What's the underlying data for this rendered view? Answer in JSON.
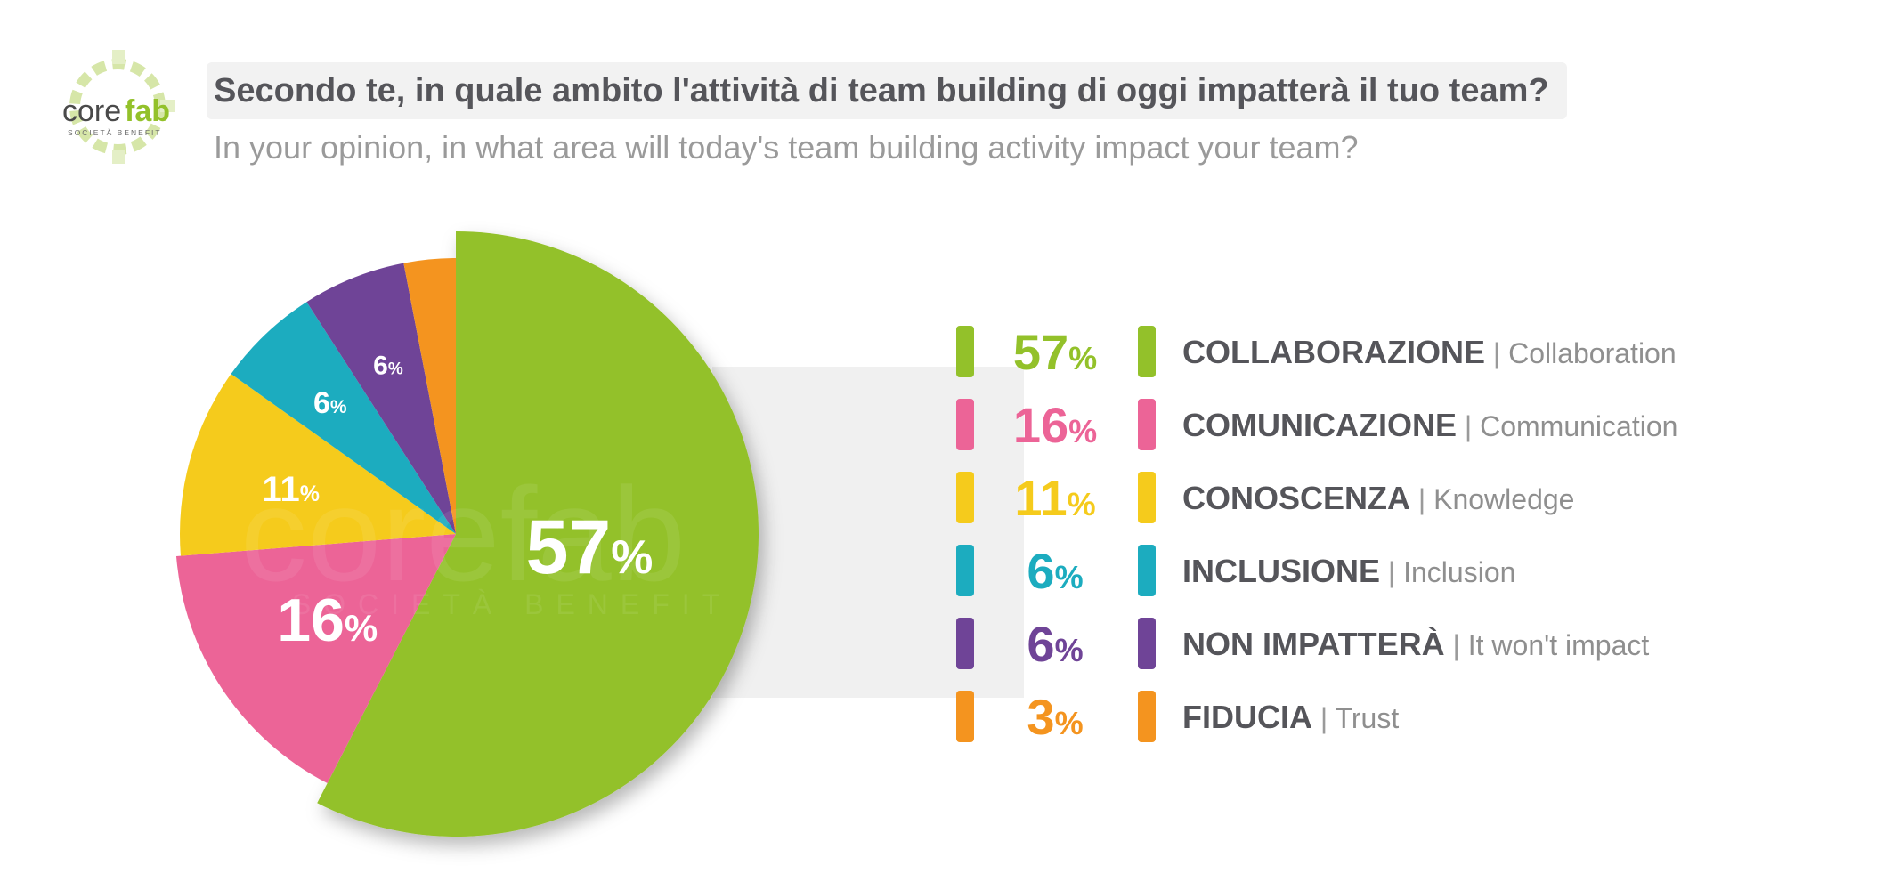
{
  "logo": {
    "word_core": "core",
    "word_fab": "fab",
    "tagline": "SOCIETÀ BENEFIT",
    "watermark_word": "corefab",
    "watermark_tagline": "SOCIETÀ BENEFIT"
  },
  "header": {
    "title_it": "Secondo te, in quale ambito l'attività di team building di oggi impatterà il tuo team?",
    "title_en": "In your opinion, in what area will today's team building activity impact your team?"
  },
  "colors": {
    "green": "#93c12a",
    "pink": "#ec6497",
    "yellow": "#f5cb1c",
    "teal": "#1cacbf",
    "purple": "#6f4497",
    "orange": "#f4941f",
    "title_text": "#55555a",
    "subtitle_text": "#9a9a9a"
  },
  "chart_data": {
    "type": "pie",
    "title": "Secondo te, in quale ambito l'attività di team building di oggi impatterà il tuo team?",
    "subtitle": "In your opinion, in what area will today's team building activity impact your team?",
    "unit": "%",
    "categories": [
      "COLLABORAZIONE",
      "COMUNICAZIONE",
      "CONOSCENZA",
      "INCLUSIONE",
      "NON IMPATTERÀ",
      "FIDUCIA"
    ],
    "categories_en": [
      "Collaboration",
      "Communication",
      "Knowledge",
      "Inclusion",
      "It won't impact",
      "Trust"
    ],
    "values": [
      57,
      16,
      11,
      6,
      6,
      3
    ],
    "colors": [
      "#93c12a",
      "#ec6497",
      "#f5cb1c",
      "#1cacbf",
      "#6f4497",
      "#f4941f"
    ],
    "legend_position": "right"
  },
  "legend": [
    {
      "pct": "57",
      "sign": "%",
      "it": "COLLABORAZIONE",
      "sep": "|",
      "en": "Collaboration"
    },
    {
      "pct": "16",
      "sign": "%",
      "it": "COMUNICAZIONE",
      "sep": "|",
      "en": "Communication"
    },
    {
      "pct": "11",
      "sign": "%",
      "it": "CONOSCENZA",
      "sep": "|",
      "en": "Knowledge"
    },
    {
      "pct": "6",
      "sign": "%",
      "it": "INCLUSIONE",
      "sep": "|",
      "en": "Inclusion"
    },
    {
      "pct": "6",
      "sign": "%",
      "it": "NON IMPATTERÀ",
      "sep": "|",
      "en": "It won't impact"
    },
    {
      "pct": "3",
      "sign": "%",
      "it": "FIDUCIA",
      "sep": "|",
      "en": "Trust"
    }
  ]
}
